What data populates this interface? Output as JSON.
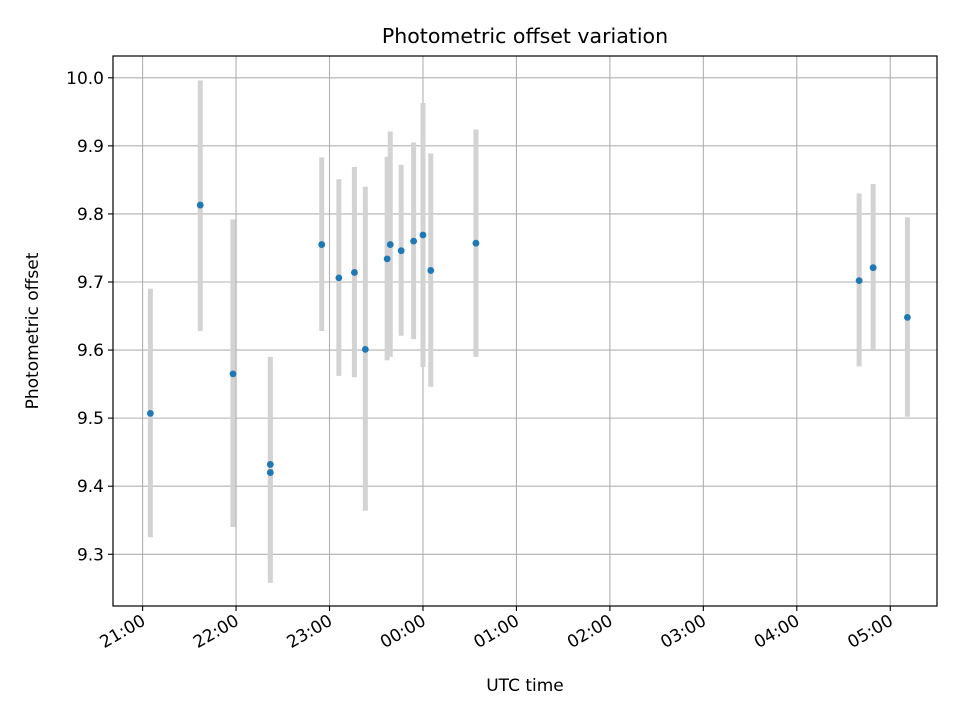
{
  "chart_data": {
    "type": "scatter",
    "title": "Photometric offset variation",
    "xlabel": "UTC time",
    "ylabel": "Photometric offset",
    "x_axis": {
      "kind": "time",
      "range": [
        "20:41",
        "05:30"
      ],
      "ticks": [
        "21:00",
        "22:00",
        "23:00",
        "00:00",
        "01:00",
        "02:00",
        "03:00",
        "04:00",
        "05:00"
      ]
    },
    "y_axis": {
      "range": [
        9.224,
        10.032
      ],
      "ticks": [
        "9.3",
        "9.4",
        "9.5",
        "9.6",
        "9.7",
        "9.8",
        "9.9",
        "10.0"
      ]
    },
    "grid": true,
    "colors": {
      "marker": "#1f77b4",
      "errorbar": "#d3d3d3"
    },
    "points": [
      {
        "x": "21:05",
        "y": 9.507,
        "ylow": 9.325,
        "yhigh": 9.69
      },
      {
        "x": "21:37",
        "y": 9.813,
        "ylow": 9.628,
        "yhigh": 9.996
      },
      {
        "x": "21:58",
        "y": 9.565,
        "ylow": 9.34,
        "yhigh": 9.792
      },
      {
        "x": "22:22",
        "y": 9.42,
        "ylow": 9.258,
        "yhigh": 9.58
      },
      {
        "x": "22:22",
        "y": 9.432,
        "ylow": 9.272,
        "yhigh": 9.59
      },
      {
        "x": "22:55",
        "y": 9.755,
        "ylow": 9.628,
        "yhigh": 9.883
      },
      {
        "x": "23:06",
        "y": 9.706,
        "ylow": 9.562,
        "yhigh": 9.851
      },
      {
        "x": "23:16",
        "y": 9.714,
        "ylow": 9.56,
        "yhigh": 9.869
      },
      {
        "x": "23:23",
        "y": 9.601,
        "ylow": 9.364,
        "yhigh": 9.84
      },
      {
        "x": "23:37",
        "y": 9.734,
        "ylow": 9.585,
        "yhigh": 9.884
      },
      {
        "x": "23:39",
        "y": 9.755,
        "ylow": 9.59,
        "yhigh": 9.921
      },
      {
        "x": "23:46",
        "y": 9.746,
        "ylow": 9.621,
        "yhigh": 9.872
      },
      {
        "x": "23:54",
        "y": 9.76,
        "ylow": 9.616,
        "yhigh": 9.905
      },
      {
        "x": "00:00",
        "y": 9.769,
        "ylow": 9.575,
        "yhigh": 9.963
      },
      {
        "x": "00:05",
        "y": 9.717,
        "ylow": 9.546,
        "yhigh": 9.889
      },
      {
        "x": "00:34",
        "y": 9.757,
        "ylow": 9.59,
        "yhigh": 9.924
      },
      {
        "x": "04:40",
        "y": 9.702,
        "ylow": 9.576,
        "yhigh": 9.83
      },
      {
        "x": "04:49",
        "y": 9.721,
        "ylow": 9.6,
        "yhigh": 9.844
      },
      {
        "x": "05:11",
        "y": 9.648,
        "ylow": 9.502,
        "yhigh": 9.795
      }
    ]
  }
}
